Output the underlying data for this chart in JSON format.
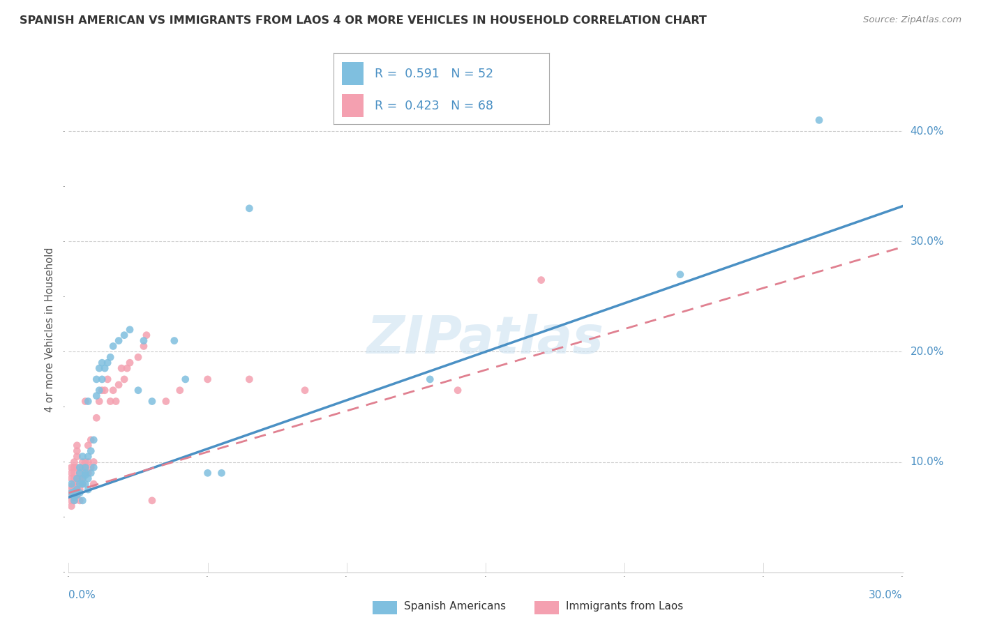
{
  "title": "SPANISH AMERICAN VS IMMIGRANTS FROM LAOS 4 OR MORE VEHICLES IN HOUSEHOLD CORRELATION CHART",
  "source": "Source: ZipAtlas.com",
  "ylabel": "4 or more Vehicles in Household",
  "blue_color": "#7fbfdf",
  "pink_color": "#f4a0b0",
  "blue_line_color": "#4a90c4",
  "pink_line_color": "#e08090",
  "watermark": "ZIPatlas",
  "xlim": [
    0.0,
    0.3
  ],
  "ylim": [
    0.0,
    0.44
  ],
  "blue_scatter": [
    [
      0.001,
      0.072
    ],
    [
      0.001,
      0.08
    ],
    [
      0.002,
      0.068
    ],
    [
      0.002,
      0.073
    ],
    [
      0.002,
      0.065
    ],
    [
      0.003,
      0.075
    ],
    [
      0.003,
      0.07
    ],
    [
      0.003,
      0.085
    ],
    [
      0.004,
      0.09
    ],
    [
      0.004,
      0.08
    ],
    [
      0.004,
      0.072
    ],
    [
      0.004,
      0.095
    ],
    [
      0.005,
      0.105
    ],
    [
      0.005,
      0.085
    ],
    [
      0.005,
      0.065
    ],
    [
      0.005,
      0.08
    ],
    [
      0.006,
      0.09
    ],
    [
      0.006,
      0.08
    ],
    [
      0.006,
      0.095
    ],
    [
      0.006,
      0.088
    ],
    [
      0.007,
      0.105
    ],
    [
      0.007,
      0.085
    ],
    [
      0.007,
      0.075
    ],
    [
      0.007,
      0.155
    ],
    [
      0.008,
      0.11
    ],
    [
      0.008,
      0.09
    ],
    [
      0.009,
      0.12
    ],
    [
      0.009,
      0.095
    ],
    [
      0.01,
      0.175
    ],
    [
      0.01,
      0.16
    ],
    [
      0.011,
      0.165
    ],
    [
      0.011,
      0.185
    ],
    [
      0.012,
      0.175
    ],
    [
      0.012,
      0.19
    ],
    [
      0.013,
      0.185
    ],
    [
      0.014,
      0.19
    ],
    [
      0.015,
      0.195
    ],
    [
      0.016,
      0.205
    ],
    [
      0.018,
      0.21
    ],
    [
      0.02,
      0.215
    ],
    [
      0.022,
      0.22
    ],
    [
      0.025,
      0.165
    ],
    [
      0.027,
      0.21
    ],
    [
      0.03,
      0.155
    ],
    [
      0.038,
      0.21
    ],
    [
      0.042,
      0.175
    ],
    [
      0.05,
      0.09
    ],
    [
      0.055,
      0.09
    ],
    [
      0.065,
      0.33
    ],
    [
      0.13,
      0.175
    ],
    [
      0.22,
      0.27
    ],
    [
      0.27,
      0.41
    ]
  ],
  "pink_scatter": [
    [
      0.001,
      0.065
    ],
    [
      0.001,
      0.075
    ],
    [
      0.001,
      0.07
    ],
    [
      0.001,
      0.085
    ],
    [
      0.001,
      0.078
    ],
    [
      0.001,
      0.06
    ],
    [
      0.001,
      0.09
    ],
    [
      0.001,
      0.095
    ],
    [
      0.002,
      0.075
    ],
    [
      0.002,
      0.08
    ],
    [
      0.002,
      0.085
    ],
    [
      0.002,
      0.07
    ],
    [
      0.002,
      0.065
    ],
    [
      0.002,
      0.09
    ],
    [
      0.002,
      0.095
    ],
    [
      0.002,
      0.1
    ],
    [
      0.003,
      0.08
    ],
    [
      0.003,
      0.075
    ],
    [
      0.003,
      0.095
    ],
    [
      0.003,
      0.085
    ],
    [
      0.003,
      0.105
    ],
    [
      0.003,
      0.11
    ],
    [
      0.003,
      0.07
    ],
    [
      0.003,
      0.115
    ],
    [
      0.004,
      0.065
    ],
    [
      0.004,
      0.075
    ],
    [
      0.004,
      0.09
    ],
    [
      0.004,
      0.085
    ],
    [
      0.004,
      0.08
    ],
    [
      0.005,
      0.085
    ],
    [
      0.005,
      0.095
    ],
    [
      0.005,
      0.1
    ],
    [
      0.005,
      0.08
    ],
    [
      0.006,
      0.095
    ],
    [
      0.006,
      0.09
    ],
    [
      0.006,
      0.155
    ],
    [
      0.006,
      0.1
    ],
    [
      0.007,
      0.115
    ],
    [
      0.007,
      0.09
    ],
    [
      0.007,
      0.1
    ],
    [
      0.008,
      0.095
    ],
    [
      0.008,
      0.12
    ],
    [
      0.009,
      0.08
    ],
    [
      0.009,
      0.1
    ],
    [
      0.01,
      0.14
    ],
    [
      0.011,
      0.155
    ],
    [
      0.012,
      0.165
    ],
    [
      0.013,
      0.165
    ],
    [
      0.014,
      0.175
    ],
    [
      0.015,
      0.155
    ],
    [
      0.016,
      0.165
    ],
    [
      0.017,
      0.155
    ],
    [
      0.018,
      0.17
    ],
    [
      0.019,
      0.185
    ],
    [
      0.02,
      0.175
    ],
    [
      0.021,
      0.185
    ],
    [
      0.022,
      0.19
    ],
    [
      0.025,
      0.195
    ],
    [
      0.027,
      0.205
    ],
    [
      0.028,
      0.215
    ],
    [
      0.03,
      0.065
    ],
    [
      0.035,
      0.155
    ],
    [
      0.04,
      0.165
    ],
    [
      0.05,
      0.175
    ],
    [
      0.065,
      0.175
    ],
    [
      0.085,
      0.165
    ],
    [
      0.14,
      0.165
    ],
    [
      0.17,
      0.265
    ]
  ],
  "legend1_text": "R =  0.591   N = 52",
  "legend2_text": "R =  0.423   N = 68",
  "bottom_legend1": "Spanish Americans",
  "bottom_legend2": "Immigrants from Laos"
}
